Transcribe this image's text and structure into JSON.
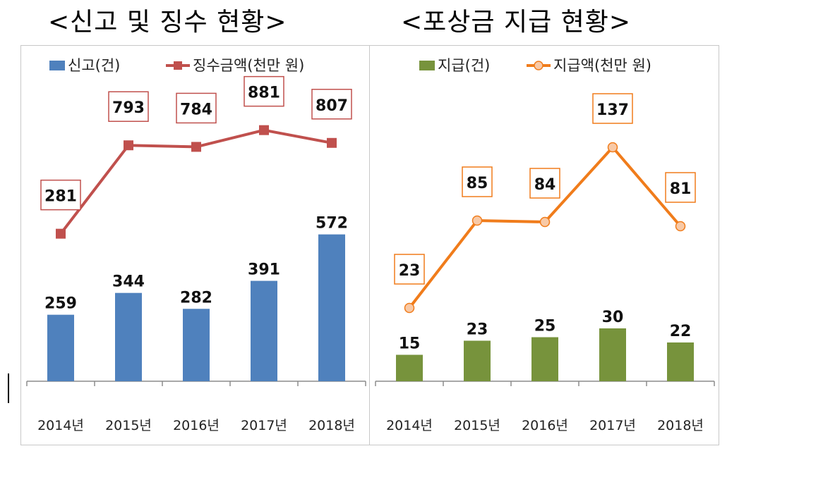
{
  "titles": {
    "left": "<신고 및 징수 현황>",
    "right": "<포상금 지급 현황>"
  },
  "chart_data": [
    {
      "type": "bar",
      "categories": [
        "2014년",
        "2015년",
        "2016년",
        "2017년",
        "2018년"
      ],
      "bar_series": {
        "name": "신고(건)",
        "values": [
          259,
          344,
          282,
          391,
          572
        ],
        "color": "#4f81bd"
      },
      "line_series": {
        "name": "징수금액(천만 원)",
        "values": [
          281,
          793,
          784,
          881,
          807
        ],
        "color": "#c0504d",
        "marker": "square"
      },
      "legend_position": "top",
      "grid": false
    },
    {
      "type": "bar",
      "categories": [
        "2014년",
        "2015년",
        "2016년",
        "2017년",
        "2018년"
      ],
      "bar_series": {
        "name": "지급(건)",
        "values": [
          15,
          23,
          25,
          30,
          22
        ],
        "color": "#77933c"
      },
      "line_series": {
        "name": "지급액(천만 원)",
        "values": [
          23,
          85,
          84,
          137,
          81
        ],
        "color": "#f07c1b",
        "marker": "circle"
      },
      "legend_position": "top",
      "grid": false
    }
  ]
}
